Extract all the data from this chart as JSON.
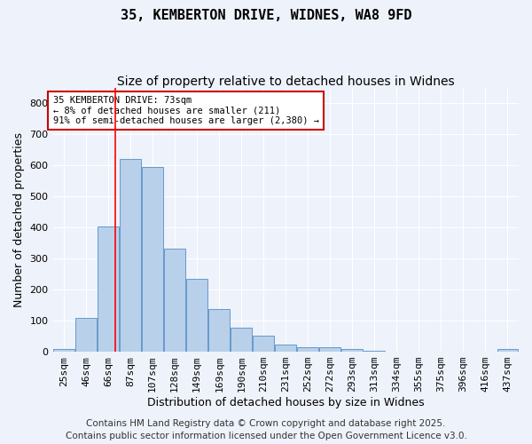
{
  "title_line1": "35, KEMBERTON DRIVE, WIDNES, WA8 9FD",
  "title_line2": "Size of property relative to detached houses in Widnes",
  "xlabel": "Distribution of detached houses by size in Widnes",
  "ylabel": "Number of detached properties",
  "bar_labels": [
    "25sqm",
    "46sqm",
    "66sqm",
    "87sqm",
    "107sqm",
    "128sqm",
    "149sqm",
    "169sqm",
    "190sqm",
    "210sqm",
    "231sqm",
    "252sqm",
    "272sqm",
    "293sqm",
    "313sqm",
    "334sqm",
    "355sqm",
    "375sqm",
    "396sqm",
    "416sqm",
    "437sqm"
  ],
  "bar_values": [
    8,
    108,
    403,
    620,
    595,
    333,
    235,
    137,
    78,
    52,
    22,
    15,
    15,
    8,
    4,
    0,
    0,
    0,
    0,
    0,
    8
  ],
  "bar_color": "#b8d0ea",
  "bar_edge_color": "#6699cc",
  "ylim": [
    0,
    850
  ],
  "yticks": [
    0,
    100,
    200,
    300,
    400,
    500,
    600,
    700,
    800
  ],
  "red_line_x": 2.33,
  "annotation_text": "35 KEMBERTON DRIVE: 73sqm\n← 8% of detached houses are smaller (211)\n91% of semi-detached houses are larger (2,380) →",
  "annotation_box_color": "#ffffff",
  "annotation_border_color": "#cc0000",
  "footer_line1": "Contains HM Land Registry data © Crown copyright and database right 2025.",
  "footer_line2": "Contains public sector information licensed under the Open Government Licence v3.0.",
  "background_color": "#eef2fb",
  "grid_color": "#ffffff",
  "title_fontsize": 11,
  "subtitle_fontsize": 10,
  "axis_label_fontsize": 9,
  "tick_fontsize": 8,
  "footer_fontsize": 7.5
}
